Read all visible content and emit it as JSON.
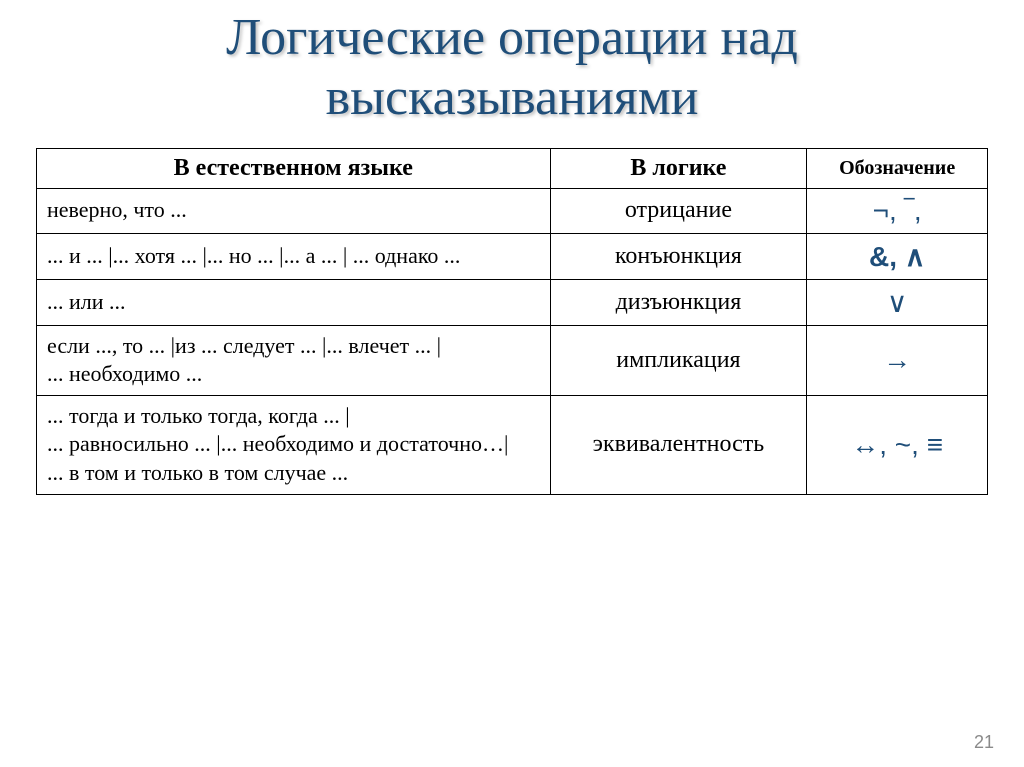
{
  "title": "Логические операции над высказываниями",
  "pageNumber": "21",
  "table": {
    "headers": {
      "col1": "В естественном языке",
      "col2": "В логике",
      "col3": "Обозначение"
    },
    "colWidths": {
      "col1": "54%",
      "col2": "27%",
      "col3": "19%"
    },
    "rows": [
      {
        "natural": "неверно, что ...",
        "logic": "отрицание",
        "symbol": "¬, ‾,",
        "symbolBold": false
      },
      {
        "natural": "... и ...  |... хотя ...  |... но ...  |... а ...  |  ... однако ...",
        "logic": "конъюнкция",
        "symbol": "&, ∧",
        "symbolBold": true
      },
      {
        "natural": "... или ...",
        "logic": "дизъюнкция",
        "symbol": "∨",
        "symbolBold": false
      },
      {
        "natural": "если ..., то ...  |из ... следует ...  |... влечет ...  |\n... необходимо ...",
        "logic": "импликация",
        "symbol": "→",
        "symbolBold": false
      },
      {
        "natural": "... тогда и только тогда, когда ... |\n... равносильно ... |... необходимо и достаточно…|\n... в том и только в том случае ...",
        "logic": "эквивалентность",
        "symbol": "↔, ~, ≡",
        "symbolBold": false
      }
    ]
  },
  "style": {
    "background": "#ffffff",
    "titleColor": "#1f4e79",
    "symbolColor": "#1f4e79",
    "border": "#000000",
    "pageNumColor": "#8a8a8a"
  }
}
